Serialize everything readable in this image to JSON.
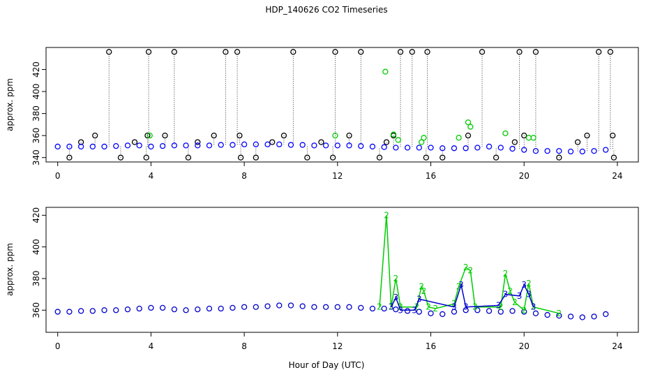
{
  "chart_data": [
    {
      "type": "scatter",
      "title": "HDP_140626  CO2 Timeseries",
      "y_label": "approx. ppm",
      "xlim": [
        -0.5,
        24.9
      ],
      "xticks": [
        0,
        4,
        8,
        12,
        16,
        20,
        24
      ],
      "ylim": [
        336,
        440
      ],
      "yticks": [
        340,
        360,
        380,
        400,
        420
      ],
      "series": [
        {
          "color": "#000000",
          "drop_lines": true,
          "x": [
            0.5,
            1,
            1.6,
            2.2,
            2.7,
            3.3,
            3.8,
            3.85,
            3.9,
            4.6,
            5,
            5.6,
            6,
            6.7,
            7.2,
            7.7,
            7.8,
            7.85,
            8.5,
            9.2,
            9.7,
            10.1,
            10.7,
            11.3,
            11.8,
            11.9,
            12.5,
            13,
            13.8,
            14.1,
            14.4,
            14.7,
            15.2,
            15.8,
            15.85,
            16.5,
            17.6,
            18.2,
            18.8,
            19.6,
            19.8,
            20,
            20.5,
            21.5,
            22.3,
            22.7,
            23.2,
            23.7,
            23.8,
            23.85
          ],
          "values": [
            340,
            354,
            360,
            436,
            340,
            354,
            340,
            360,
            436,
            360,
            436,
            340,
            354,
            360,
            436,
            436,
            360,
            340,
            340,
            354,
            360,
            436,
            340,
            354,
            340,
            436,
            360,
            436,
            340,
            354,
            360,
            436,
            436,
            340,
            436,
            340,
            360,
            436,
            340,
            354,
            436,
            360,
            436,
            340,
            354,
            360,
            436,
            436,
            360,
            340
          ]
        },
        {
          "color": "#0000ff",
          "x": [
            0,
            0.5,
            1,
            1.5,
            2,
            2.5,
            3,
            3.5,
            4,
            4.5,
            5,
            5.5,
            6,
            6.5,
            7,
            7.5,
            8,
            8.5,
            9,
            9.5,
            10,
            10.5,
            11,
            11.5,
            12,
            12.5,
            13,
            13.5,
            14,
            14.5,
            15,
            15.5,
            16,
            16.5,
            17,
            17.5,
            18,
            18.5,
            19,
            19.5,
            20,
            20.5,
            21,
            21.5,
            22,
            22.5,
            23,
            23.5
          ],
          "values": [
            350,
            350,
            350,
            350,
            350,
            350.5,
            351,
            351,
            350,
            350.5,
            351,
            351,
            351,
            351,
            351.5,
            351.5,
            352,
            352,
            352,
            352,
            351.5,
            351.5,
            351,
            351,
            351,
            351,
            350.5,
            350,
            349.5,
            349,
            349,
            349,
            349,
            348.5,
            348.5,
            348.5,
            349,
            350,
            349,
            348,
            347,
            346,
            346,
            346,
            345.5,
            345.5,
            346,
            347
          ]
        },
        {
          "color": "#00cc00",
          "x": [
            3.95,
            11.9,
            14.05,
            14.4,
            14.6,
            15.6,
            15.7,
            17.2,
            17.6,
            17.7,
            19.2,
            20.2,
            20.4
          ],
          "values": [
            360,
            360,
            418,
            361,
            356,
            354,
            358,
            358,
            372,
            368,
            362,
            358,
            358
          ]
        }
      ]
    },
    {
      "type": "line",
      "y_label": "approx. ppm",
      "x_label": "Hour of Day (UTC)",
      "xlim": [
        -0.5,
        24.9
      ],
      "xticks": [
        0,
        4,
        8,
        12,
        16,
        20,
        24
      ],
      "ylim": [
        346,
        425
      ],
      "yticks": [
        360,
        380,
        400,
        420
      ],
      "series": [
        {
          "color": "#0000cc",
          "x": [
            0,
            0.5,
            1,
            1.5,
            2,
            2.5,
            3,
            3.5,
            4,
            4.5,
            5,
            5.5,
            6,
            6.5,
            7,
            7.5,
            8,
            8.5,
            9,
            9.5,
            10,
            10.5,
            11,
            11.5,
            12,
            12.5,
            13,
            13.5,
            14,
            14.5,
            15,
            15.5,
            16,
            16.5,
            17,
            17.5,
            18,
            18.5,
            19,
            19.5,
            20,
            20.5,
            21,
            21.5,
            22,
            22.5,
            23,
            23.5
          ],
          "values": [
            359,
            359,
            359.5,
            359.5,
            360,
            360,
            360.5,
            361,
            361.5,
            361.5,
            360.5,
            360,
            360.5,
            361,
            361,
            361.5,
            362,
            362,
            362.5,
            363,
            363,
            362.5,
            362,
            362,
            362,
            362,
            361.5,
            361,
            361,
            360.5,
            359.5,
            359,
            358,
            357.5,
            359,
            360,
            360,
            359.5,
            359,
            359.5,
            359,
            358,
            357,
            356.5,
            356,
            355.5,
            356,
            357.5
          ]
        },
        {
          "color": "#00cc00",
          "marker": "2",
          "x": [
            13.8,
            14.1,
            14.3,
            14.5,
            14.7,
            15.4,
            15.6,
            15.7,
            15.9,
            16.2,
            17,
            17.2,
            17.5,
            17.7,
            17.9,
            19,
            19.2,
            19.4,
            19.6,
            20,
            20.2,
            20.4,
            21.5
          ],
          "values": [
            362,
            420,
            362,
            380,
            362,
            362,
            375,
            372,
            362,
            361,
            364,
            375,
            387,
            385,
            362,
            362,
            383,
            372,
            365,
            360,
            377,
            362,
            358
          ]
        },
        {
          "color": "#0000cc",
          "marker": "3",
          "x": [
            14.3,
            14.5,
            14.7,
            15.3,
            15.5,
            17,
            17.3,
            17.5,
            18.9,
            19.2,
            19.8,
            20,
            20.2,
            20.4
          ],
          "values": [
            362,
            368,
            360,
            360,
            367,
            362,
            376,
            362,
            363,
            370,
            369,
            376,
            370,
            362
          ]
        }
      ]
    }
  ]
}
